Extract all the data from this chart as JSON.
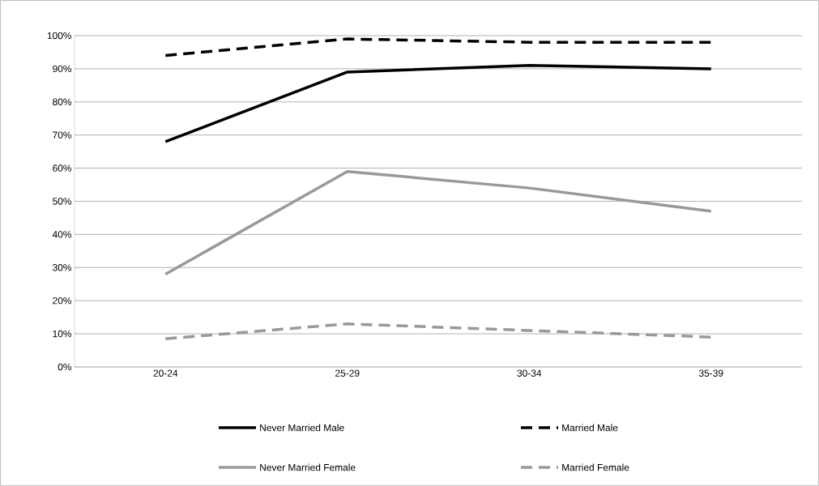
{
  "chart_data": {
    "type": "line",
    "categories": [
      "20-24",
      "25-29",
      "30-34",
      "35-39"
    ],
    "series": [
      {
        "name": "Never Married Male",
        "color": "#000000",
        "line_style": "solid",
        "values": [
          68,
          89,
          91,
          90
        ]
      },
      {
        "name": "Married Male",
        "color": "#000000",
        "line_style": "dashed",
        "values": [
          94,
          99,
          98,
          98
        ]
      },
      {
        "name": "Never Married Female",
        "color": "#999999",
        "line_style": "solid",
        "values": [
          28,
          59,
          54,
          47
        ]
      },
      {
        "name": "Married Female",
        "color": "#999999",
        "line_style": "dashed",
        "values": [
          8.5,
          13,
          11,
          9
        ]
      }
    ],
    "ylim": [
      0,
      100
    ],
    "yticks": [
      {
        "value": 0,
        "label": "0%"
      },
      {
        "value": 10,
        "label": "10%"
      },
      {
        "value": 20,
        "label": "20%"
      },
      {
        "value": 30,
        "label": "30%"
      },
      {
        "value": 40,
        "label": "40%"
      },
      {
        "value": 50,
        "label": "50%"
      },
      {
        "value": 60,
        "label": "60%"
      },
      {
        "value": 70,
        "label": "70%"
      },
      {
        "value": 80,
        "label": "80%"
      },
      {
        "value": 90,
        "label": "90%"
      },
      {
        "value": 100,
        "label": "100%"
      }
    ],
    "grid": "y",
    "legend": "bottom",
    "marker": "none"
  }
}
